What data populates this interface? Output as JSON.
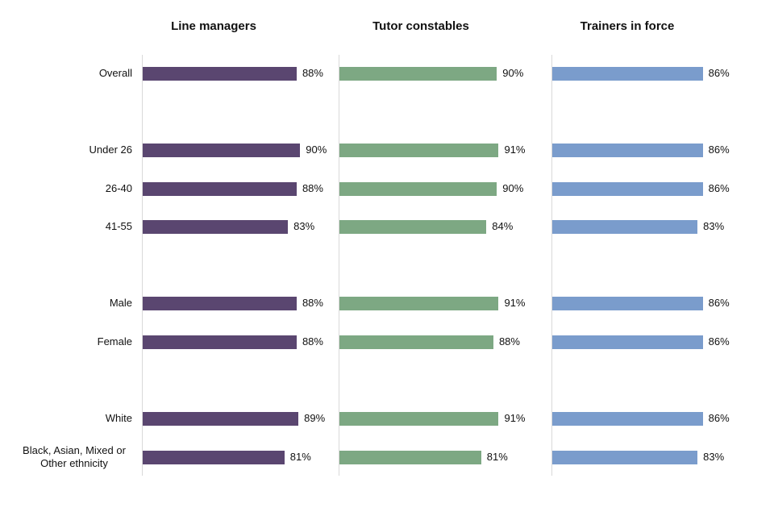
{
  "chart_data": {
    "type": "bar",
    "orientation": "horizontal",
    "categories": [
      "Overall",
      "Under 26",
      "26-40",
      "41-55",
      "Male",
      "Female",
      "White",
      "Black, Asian, Mixed or Other ethnicity"
    ],
    "panels": [
      {
        "title": "Line managers",
        "color": "#5a4670",
        "values": [
          88,
          90,
          88,
          83,
          88,
          88,
          89,
          81
        ],
        "labels": [
          "88%",
          "90%",
          "88%",
          "83%",
          "88%",
          "88%",
          "89%",
          "81%"
        ]
      },
      {
        "title": "Tutor constables",
        "color": "#7da883",
        "values": [
          90,
          91,
          90,
          84,
          91,
          88,
          91,
          81
        ],
        "labels": [
          "90%",
          "91%",
          "90%",
          "84%",
          "91%",
          "88%",
          "91%",
          "81%"
        ]
      },
      {
        "title": "Trainers in force",
        "color": "#7a9ccc",
        "values": [
          86,
          86,
          86,
          83,
          86,
          86,
          86,
          83
        ],
        "labels": [
          "86%",
          "86%",
          "86%",
          "83%",
          "86%",
          "86%",
          "86%",
          "83%"
        ]
      }
    ],
    "grid": false,
    "legend": "none"
  }
}
